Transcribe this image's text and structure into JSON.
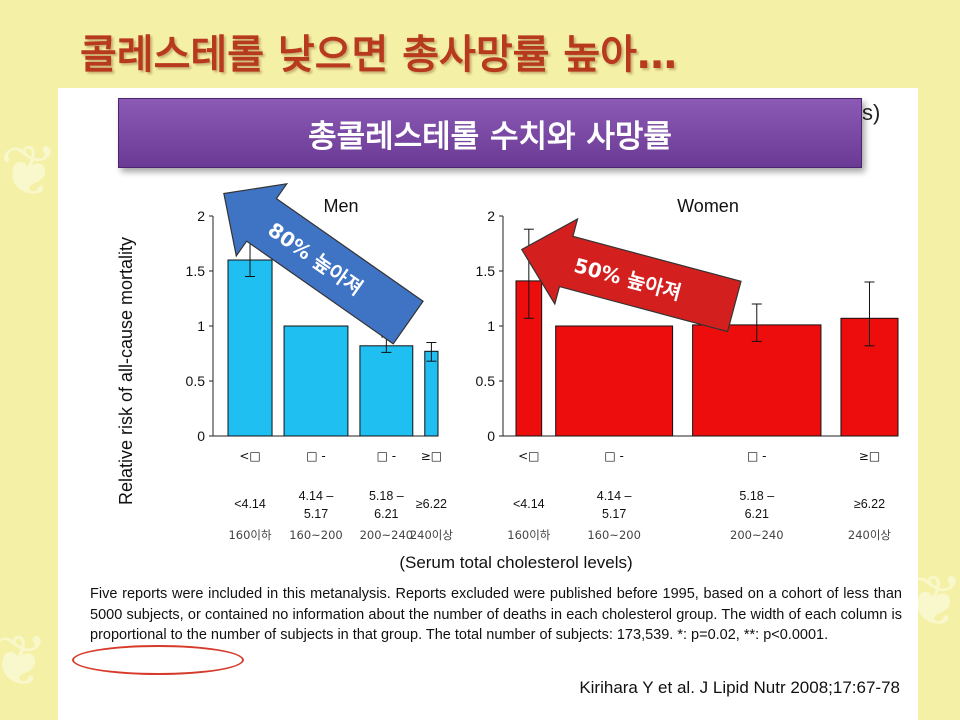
{
  "title": "콜레스테롤 낮으면 총사망률 높아…",
  "banner": {
    "label": "총콜레스테롤 수치와 사망률",
    "tail": "s)"
  },
  "colors": {
    "men": "#1fbff2",
    "women": "#ee0d0d",
    "blue_arrow": "#3f74c4",
    "red_arrow": "#d3201e",
    "banner": "#7a4aa6",
    "title": "#b83a1e"
  },
  "chart_data": {
    "type": "bar",
    "ylabel": "Relative risk of all-cause mortality",
    "xlabel": "(Serum total cholesterol levels)",
    "ylim": [
      0,
      2
    ],
    "yticks": [
      "0",
      "0.5",
      "1",
      "1.5",
      "2"
    ],
    "panels": [
      {
        "name": "Men",
        "arrow_label": "80% 높아져",
        "categories": [
          "<4.14",
          "4.14 – 5.17",
          "5.18 – 6.21",
          "≥6.22"
        ],
        "categories_kr": [
          "160이하",
          "160~200",
          "200~240",
          "240이상"
        ],
        "garbled": [
          "<□",
          "□ -",
          "□ -",
          "≥□"
        ],
        "values": [
          1.6,
          1.0,
          0.82,
          0.77
        ],
        "err_low": [
          1.45,
          null,
          0.76,
          0.68
        ],
        "err_high": [
          1.8,
          null,
          0.9,
          0.85
        ],
        "width_weights": [
          1,
          1.45,
          1.2,
          0.3
        ]
      },
      {
        "name": "Women",
        "arrow_label": "50% 높아져",
        "categories": [
          "<4.14",
          "4.14 – 5.17",
          "5.18 – 6.21",
          "≥6.22"
        ],
        "categories_kr": [
          "160이하",
          "160~200",
          "200~240",
          "240이상"
        ],
        "garbled": [
          "<□",
          "□ -",
          "□ -",
          "≥□"
        ],
        "values": [
          1.41,
          1.0,
          1.01,
          1.07
        ],
        "err_low": [
          1.07,
          null,
          0.86,
          0.82
        ],
        "err_high": [
          1.88,
          null,
          1.2,
          1.4
        ],
        "width_weights": [
          0.45,
          2.05,
          2.25,
          1.0
        ]
      }
    ]
  },
  "footnote": "Five reports were included in this metanalysis. Reports excluded were published before 1995, based on a cohort of less than 5000 subjects, or contained no information about the number of deaths in each cholesterol group.  The width of each column is proportional to the number of subjects in that group. The total number of subjects: 173,539.  *: p=0.02,  **: p<0.0001.",
  "citation": "Kirihara Y et al. J Lipid Nutr 2008;17:67-78"
}
